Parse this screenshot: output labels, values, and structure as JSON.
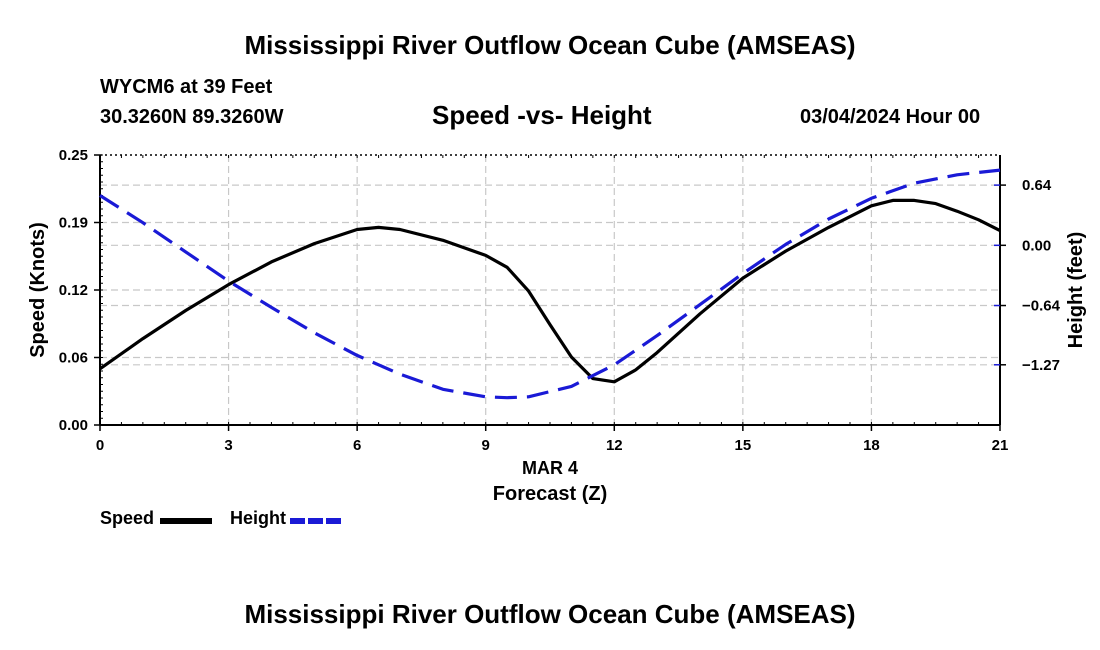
{
  "header": {
    "title_top": "Mississippi River Outflow Ocean Cube (AMSEAS)",
    "title_bottom": "Mississippi River Outflow Ocean Cube (AMSEAS)",
    "station": "WYCM6 at 39 Feet",
    "coords": "30.3260N  89.3260W",
    "subtitle": "Speed -vs- Height",
    "datetime": "03/04/2024 Hour 00"
  },
  "legend": {
    "speed_label": "Speed",
    "height_label": "Height"
  },
  "colors": {
    "speed": "#000000",
    "height": "#1a1ad6",
    "grid": "#c8c8c8"
  },
  "chart_data": {
    "type": "line",
    "title": "Speed -vs- Height",
    "xlabel": "Forecast (Z)",
    "x_date_label": "MAR 4",
    "x_range": [
      0,
      21
    ],
    "x_ticks": [
      0,
      3,
      6,
      9,
      12,
      15,
      18,
      21
    ],
    "x_tick_labels": [
      "0",
      "3",
      "6",
      "9",
      "12",
      "15",
      "18",
      "21"
    ],
    "y_left": {
      "label": "Speed (Knots)",
      "range": [
        0,
        0.25
      ],
      "ticks": [
        0,
        0.0625,
        0.125,
        0.1875,
        0.25
      ],
      "tick_labels": [
        "0.00",
        "0.06",
        "0.12",
        "0.19",
        "0.25"
      ]
    },
    "y_right": {
      "label": "Height (feet)",
      "range": [
        -1.91,
        0.96
      ],
      "ticks": [
        -1.27,
        -0.64,
        0.0,
        0.64
      ],
      "tick_labels": [
        "−1.27",
        "−0.64",
        "0.00",
        "0.64"
      ]
    },
    "grid": true,
    "series": [
      {
        "name": "Speed",
        "axis": "left",
        "style": "solid",
        "x": [
          0,
          1,
          2,
          3,
          4,
          5,
          6,
          6.5,
          7,
          8,
          9,
          9.5,
          10,
          10.5,
          11,
          11.5,
          12,
          12.5,
          13,
          14,
          15,
          16,
          17,
          18,
          18.5,
          19,
          19.5,
          20,
          20.5,
          21
        ],
        "values": [
          0.052,
          0.08,
          0.106,
          0.13,
          0.151,
          0.168,
          0.181,
          0.183,
          0.181,
          0.171,
          0.157,
          0.146,
          0.124,
          0.093,
          0.063,
          0.043,
          0.04,
          0.051,
          0.067,
          0.103,
          0.136,
          0.161,
          0.183,
          0.203,
          0.208,
          0.208,
          0.205,
          0.198,
          0.19,
          0.18
        ]
      },
      {
        "name": "Height",
        "axis": "right",
        "style": "dashed",
        "x": [
          0,
          1,
          2,
          3,
          4,
          5,
          6,
          7,
          8,
          9,
          9.5,
          10,
          11,
          12,
          13,
          14,
          15,
          16,
          17,
          18,
          19,
          20,
          21
        ],
        "values": [
          0.53,
          0.24,
          -0.07,
          -0.38,
          -0.66,
          -0.93,
          -1.17,
          -1.37,
          -1.53,
          -1.61,
          -1.62,
          -1.61,
          -1.5,
          -1.27,
          -0.96,
          -0.63,
          -0.3,
          0.01,
          0.28,
          0.5,
          0.66,
          0.75,
          0.8
        ]
      }
    ]
  }
}
